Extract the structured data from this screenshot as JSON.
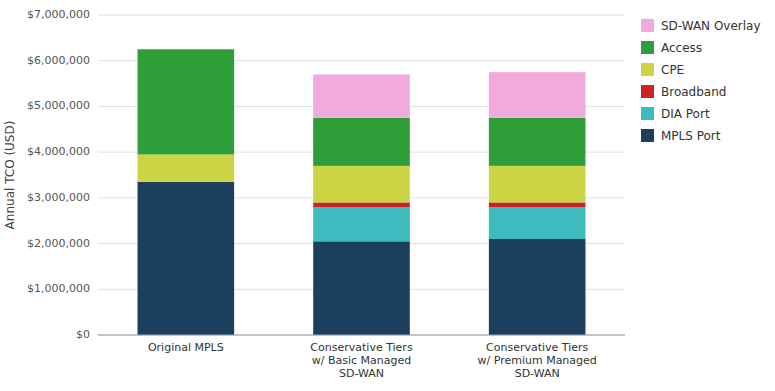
{
  "chart_data": {
    "type": "bar",
    "stacked": true,
    "categories": [
      "Original MPLS",
      "Conservative Tiers\nw/ Basic Managed\nSD-WAN",
      "Conservative Tiers\nw/ Premium Managed\nSD-WAN"
    ],
    "series": [
      {
        "name": "MPLS Port",
        "color": "#1c3f5e",
        "values": [
          3350000,
          2050000,
          2100000
        ]
      },
      {
        "name": "DIA Port",
        "color": "#3cbcbf",
        "values": [
          0,
          750000,
          700000
        ]
      },
      {
        "name": "Broadband",
        "color": "#cc2222",
        "values": [
          0,
          100000,
          100000
        ]
      },
      {
        "name": "CPE",
        "color": "#ccd444",
        "values": [
          600000,
          800000,
          800000
        ]
      },
      {
        "name": "Access",
        "color": "#2e9e38",
        "values": [
          2300000,
          1050000,
          1050000
        ]
      },
      {
        "name": "SD-WAN Overlay",
        "color": "#f0aadc",
        "values": [
          0,
          950000,
          1000000
        ]
      }
    ],
    "ylabel": "Annual TCO (USD)",
    "ylim": [
      0,
      7000000
    ],
    "yticks": [
      {
        "value": 0,
        "label": "$0"
      },
      {
        "value": 1000000,
        "label": "$1,000,000"
      },
      {
        "value": 2000000,
        "label": "$2,000,000"
      },
      {
        "value": 3000000,
        "label": "$3,000,000"
      },
      {
        "value": 4000000,
        "label": "$4,000,000"
      },
      {
        "value": 5000000,
        "label": "$5,000,000"
      },
      {
        "value": 6000000,
        "label": "$6,000,000"
      },
      {
        "value": 7000000,
        "label": "$7,000,000"
      }
    ],
    "grid": true,
    "legend": "right"
  }
}
